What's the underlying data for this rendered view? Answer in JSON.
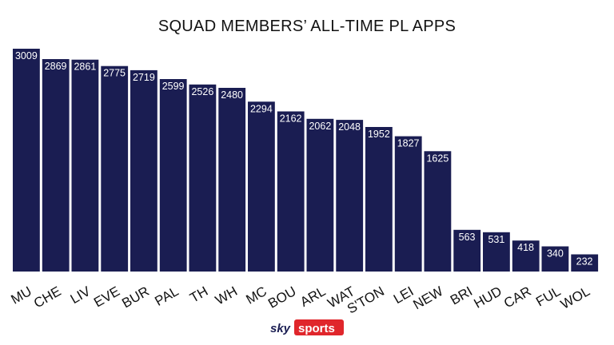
{
  "chart_data": {
    "type": "bar",
    "title": "SQUAD MEMBERS’ ALL-TIME PL APPS",
    "categories": [
      "MU",
      "CHE",
      "LIV",
      "EVE",
      "BUR",
      "PAL",
      "TH",
      "WH",
      "MC",
      "BOU",
      "ARL",
      "WAT",
      "S'TON",
      "LEI",
      "NEW",
      "BRI",
      "HUD",
      "CAR",
      "FUL",
      "WOL"
    ],
    "values": [
      3009,
      2869,
      2861,
      2775,
      2719,
      2599,
      2526,
      2480,
      2294,
      2162,
      2062,
      2048,
      1952,
      1827,
      1625,
      563,
      531,
      418,
      340,
      232
    ],
    "xlabel": "",
    "ylabel": "",
    "ylim": [
      0,
      3009
    ],
    "grid": false,
    "legend": "none",
    "bar_color": "#1a1d52",
    "value_label_color": "#ffffff"
  },
  "branding": {
    "sky": "sky",
    "sports": "sports",
    "sports_bg_color": "#e0262b"
  }
}
